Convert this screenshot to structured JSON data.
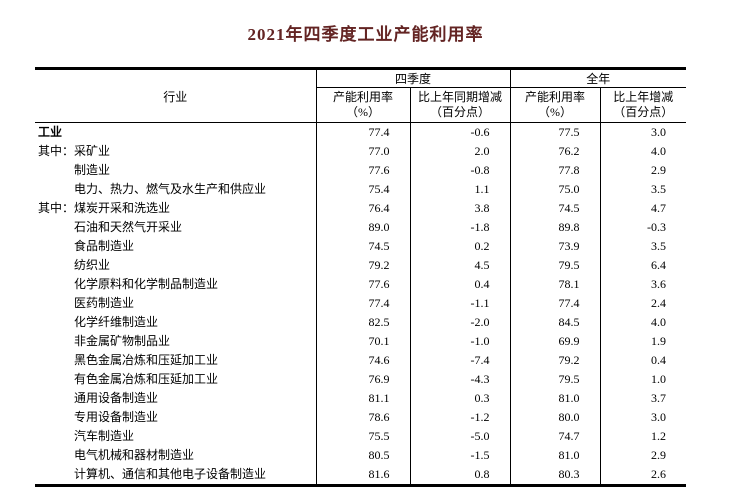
{
  "page": {
    "title": "2021年四季度工业产能利用率",
    "title_color": "#632423",
    "background_color": "#ffffff",
    "text_color": "#000000"
  },
  "table": {
    "header": {
      "industry": "行业",
      "groups": [
        {
          "label": "四季度",
          "sub": [
            [
              "产能利用率",
              "（%）"
            ],
            [
              "比上年同期增减",
              "（百分点）"
            ]
          ]
        },
        {
          "label": "全年",
          "sub": [
            [
              "产能利用率",
              "（%）"
            ],
            [
              "比上年增减",
              "（百分点）"
            ]
          ]
        }
      ]
    },
    "rows": [
      {
        "prefix": "",
        "name": "工业",
        "bold": true,
        "indent": 0,
        "values": [
          "77.4",
          "-0.6",
          "77.5",
          "3.0"
        ]
      },
      {
        "prefix": "其中：",
        "name": "采矿业",
        "bold": false,
        "indent": 0,
        "values": [
          "77.0",
          "2.0",
          "76.2",
          "4.0"
        ]
      },
      {
        "prefix": "",
        "name": "制造业",
        "bold": false,
        "indent": 1,
        "values": [
          "77.6",
          "-0.8",
          "77.8",
          "2.9"
        ]
      },
      {
        "prefix": "",
        "name": "电力、热力、燃气及水生产和供应业",
        "bold": false,
        "indent": 1,
        "values": [
          "75.4",
          "1.1",
          "75.0",
          "3.5"
        ]
      },
      {
        "prefix": "其中：",
        "name": "煤炭开采和洗选业",
        "bold": false,
        "indent": 0,
        "values": [
          "76.4",
          "3.8",
          "74.5",
          "4.7"
        ]
      },
      {
        "prefix": "",
        "name": "石油和天然气开采业",
        "bold": false,
        "indent": 1,
        "values": [
          "89.0",
          "-1.8",
          "89.8",
          "-0.3"
        ]
      },
      {
        "prefix": "",
        "name": "食品制造业",
        "bold": false,
        "indent": 1,
        "values": [
          "74.5",
          "0.2",
          "73.9",
          "3.5"
        ]
      },
      {
        "prefix": "",
        "name": "纺织业",
        "bold": false,
        "indent": 1,
        "values": [
          "79.2",
          "4.5",
          "79.5",
          "6.4"
        ]
      },
      {
        "prefix": "",
        "name": "化学原料和化学制品制造业",
        "bold": false,
        "indent": 1,
        "values": [
          "77.6",
          "0.4",
          "78.1",
          "3.6"
        ]
      },
      {
        "prefix": "",
        "name": "医药制造业",
        "bold": false,
        "indent": 1,
        "values": [
          "77.4",
          "-1.1",
          "77.4",
          "2.4"
        ]
      },
      {
        "prefix": "",
        "name": "化学纤维制造业",
        "bold": false,
        "indent": 1,
        "values": [
          "82.5",
          "-2.0",
          "84.5",
          "4.0"
        ]
      },
      {
        "prefix": "",
        "name": "非金属矿物制品业",
        "bold": false,
        "indent": 1,
        "values": [
          "70.1",
          "-1.0",
          "69.9",
          "1.9"
        ]
      },
      {
        "prefix": "",
        "name": "黑色金属冶炼和压延加工业",
        "bold": false,
        "indent": 1,
        "values": [
          "74.6",
          "-7.4",
          "79.2",
          "0.4"
        ]
      },
      {
        "prefix": "",
        "name": "有色金属冶炼和压延加工业",
        "bold": false,
        "indent": 1,
        "values": [
          "76.9",
          "-4.3",
          "79.5",
          "1.0"
        ]
      },
      {
        "prefix": "",
        "name": "通用设备制造业",
        "bold": false,
        "indent": 1,
        "values": [
          "81.1",
          "0.3",
          "81.0",
          "3.7"
        ]
      },
      {
        "prefix": "",
        "name": "专用设备制造业",
        "bold": false,
        "indent": 1,
        "values": [
          "78.6",
          "-1.2",
          "80.0",
          "3.0"
        ]
      },
      {
        "prefix": "",
        "name": "汽车制造业",
        "bold": false,
        "indent": 1,
        "values": [
          "75.5",
          "-5.0",
          "74.7",
          "1.2"
        ]
      },
      {
        "prefix": "",
        "name": "电气机械和器材制造业",
        "bold": false,
        "indent": 1,
        "values": [
          "80.5",
          "-1.5",
          "81.0",
          "2.9"
        ]
      },
      {
        "prefix": "",
        "name": "计算机、通信和其他电子设备制造业",
        "bold": false,
        "indent": 1,
        "values": [
          "81.6",
          "0.8",
          "80.3",
          "2.6"
        ]
      }
    ]
  },
  "chart_data": {
    "type": "table",
    "title": "2021年四季度工业产能利用率",
    "columns": [
      "行业",
      "四季度 产能利用率（%）",
      "四季度 比上年同期增减（百分点）",
      "全年 产能利用率（%）",
      "全年 比上年增减（百分点）"
    ],
    "rows": [
      [
        "工业",
        77.4,
        -0.6,
        77.5,
        3.0
      ],
      [
        "其中：采矿业",
        77.0,
        2.0,
        76.2,
        4.0
      ],
      [
        "制造业",
        77.6,
        -0.8,
        77.8,
        2.9
      ],
      [
        "电力、热力、燃气及水生产和供应业",
        75.4,
        1.1,
        75.0,
        3.5
      ],
      [
        "其中：煤炭开采和洗选业",
        76.4,
        3.8,
        74.5,
        4.7
      ],
      [
        "石油和天然气开采业",
        89.0,
        -1.8,
        89.8,
        -0.3
      ],
      [
        "食品制造业",
        74.5,
        0.2,
        73.9,
        3.5
      ],
      [
        "纺织业",
        79.2,
        4.5,
        79.5,
        6.4
      ],
      [
        "化学原料和化学制品制造业",
        77.6,
        0.4,
        78.1,
        3.6
      ],
      [
        "医药制造业",
        77.4,
        -1.1,
        77.4,
        2.4
      ],
      [
        "化学纤维制造业",
        82.5,
        -2.0,
        84.5,
        4.0
      ],
      [
        "非金属矿物制品业",
        70.1,
        -1.0,
        69.9,
        1.9
      ],
      [
        "黑色金属冶炼和压延加工业",
        74.6,
        -7.4,
        79.2,
        0.4
      ],
      [
        "有色金属冶炼和压延加工业",
        76.9,
        -4.3,
        79.5,
        1.0
      ],
      [
        "通用设备制造业",
        81.1,
        0.3,
        81.0,
        3.7
      ],
      [
        "专用设备制造业",
        78.6,
        -1.2,
        80.0,
        3.0
      ],
      [
        "汽车制造业",
        75.5,
        -5.0,
        74.7,
        1.2
      ],
      [
        "电气机械和器材制造业",
        80.5,
        -1.5,
        81.0,
        2.9
      ],
      [
        "计算机、通信和其他电子设备制造业",
        81.6,
        0.8,
        80.3,
        2.6
      ]
    ]
  }
}
